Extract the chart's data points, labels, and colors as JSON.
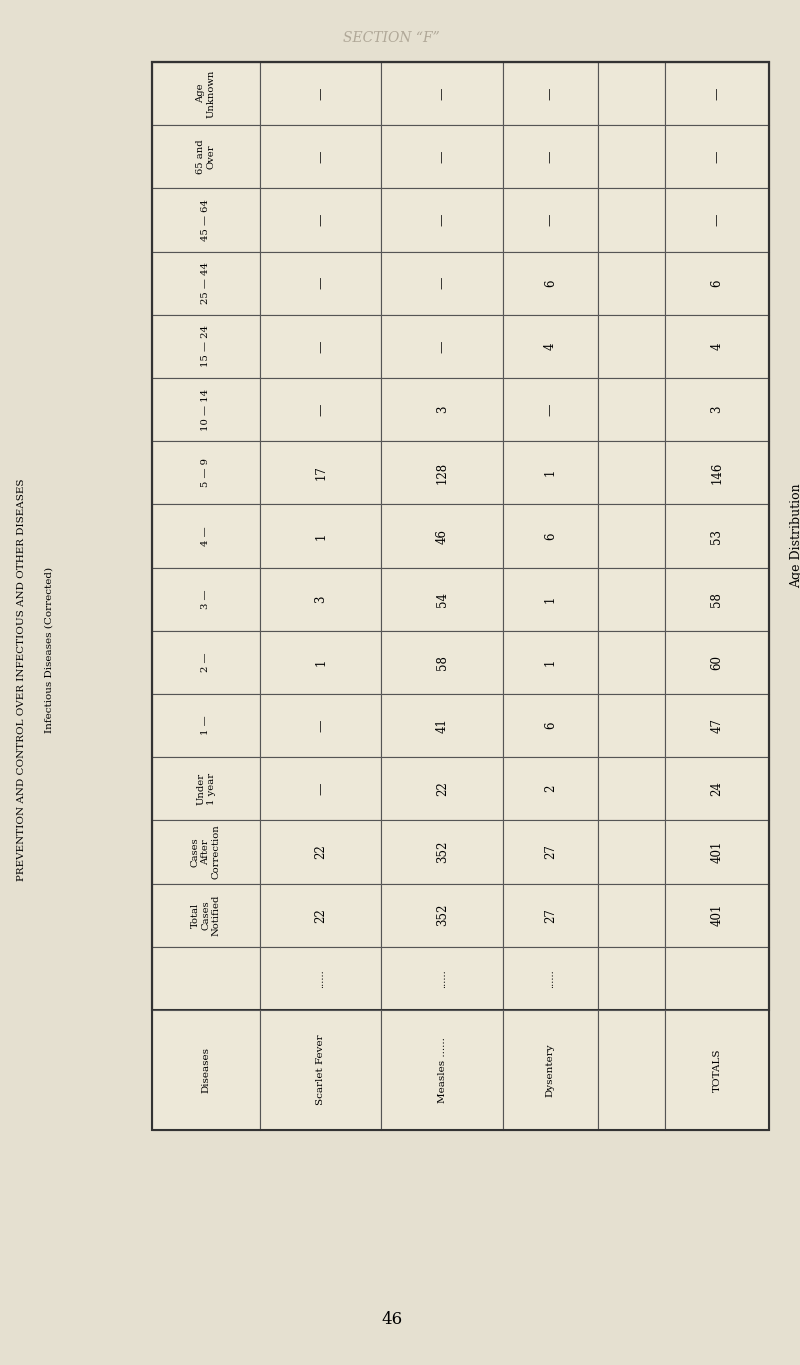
{
  "page_title": "SECTION “F”",
  "left_label_1": "PREVENTION AND CONTROL OVER INFECTIOUS AND OTHER DISEASES",
  "left_label_2": "Infectious Diseases (Corrected)",
  "right_label": "Age Distribution",
  "page_number": "46",
  "bg_color": "#e5e0d0",
  "cell_color": "#ede8d8",
  "line_color": "#555555",
  "row_headers": [
    "Age\nUnknown",
    "65 and\nOver",
    "45 — 64",
    "25 — 44",
    "15 — 24",
    "10 — 14",
    "5 — 9",
    "4 —",
    "3 —",
    "2 —",
    "1 —",
    "Under\n1 year",
    "Cases\nAfter\nCorrection",
    "Total\nCases\nNotified",
    ""
  ],
  "col_headers": [
    "Diseases",
    "Scarlet Fever",
    "Measles ......",
    "Dysentery",
    "",
    "TOTALS"
  ],
  "table_data": [
    [
      "|",
      "|",
      "|",
      "",
      "|"
    ],
    [
      "|",
      "|",
      "|",
      "",
      "|"
    ],
    [
      "|",
      "|",
      "|",
      "",
      "|"
    ],
    [
      "|",
      "|",
      "6",
      "",
      "6"
    ],
    [
      "|",
      "|",
      "4",
      "",
      "4"
    ],
    [
      "|",
      "3",
      "|",
      "",
      "3"
    ],
    [
      "17",
      "128",
      "1",
      "",
      "146"
    ],
    [
      "1",
      "46",
      "6",
      "",
      "53"
    ],
    [
      "3",
      "54",
      "1",
      "",
      "58"
    ],
    [
      "1",
      "58",
      "1",
      "",
      "60"
    ],
    [
      "|",
      "41",
      "6",
      "",
      "47"
    ],
    [
      "|",
      "22",
      "2",
      "",
      "24"
    ],
    [
      "22",
      "352",
      "27",
      "",
      "401"
    ],
    [
      "22",
      "352",
      "27",
      "",
      "401"
    ],
    [
      "......",
      "......",
      "......",
      "",
      ""
    ]
  ],
  "dots_rows": [
    14
  ],
  "blank_col": 3
}
